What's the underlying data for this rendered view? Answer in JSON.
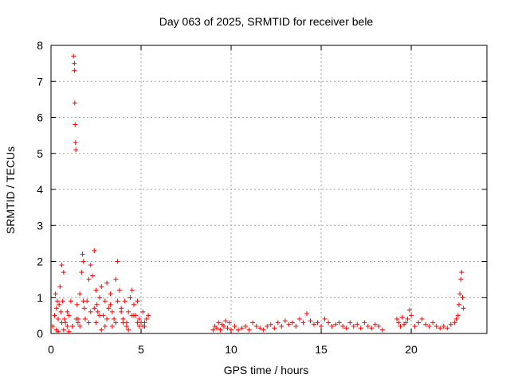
{
  "chart_data": {
    "type": "scatter",
    "title": "Day 063 of 2025, SRMTID for receiver bele",
    "xlabel": "GPS time / hours",
    "ylabel": "SRMTID / TECUs",
    "xlim": [
      0,
      24.2
    ],
    "ylim": [
      0,
      8
    ],
    "xticks": [
      0,
      5,
      10,
      15,
      20
    ],
    "xtick_labels": [
      "0",
      "5",
      "10",
      "15",
      "20"
    ],
    "yticks": [
      0,
      1,
      2,
      3,
      4,
      5,
      6,
      7,
      8
    ],
    "ytick_labels": [
      "0",
      "1",
      "2",
      "3",
      "4",
      "5",
      "6",
      "7",
      "8"
    ],
    "grid": true,
    "marker": "+",
    "color": "#ff0000",
    "series": [
      {
        "name": "SRMTID",
        "x": [
          0.1,
          0.2,
          0.25,
          0.3,
          0.35,
          0.4,
          0.45,
          0.5,
          0.55,
          0.6,
          0.65,
          0.7,
          0.75,
          0.8,
          0.9,
          1.0,
          1.1,
          1.2,
          1.25,
          1.3,
          1.3,
          1.32,
          1.34,
          1.36,
          1.38,
          1.4,
          1.45,
          1.5,
          1.6,
          1.7,
          1.75,
          1.8,
          1.85,
          1.9,
          2.0,
          2.1,
          2.2,
          2.3,
          2.4,
          2.5,
          2.55,
          2.6,
          2.7,
          2.8,
          2.9,
          3.0,
          3.1,
          3.2,
          3.3,
          3.4,
          3.5,
          3.6,
          3.7,
          3.8,
          3.9,
          4.0,
          4.1,
          4.2,
          4.3,
          4.4,
          4.5,
          4.6,
          4.7,
          4.8,
          4.9,
          5.0,
          5.1,
          5.2,
          5.3,
          5.4,
          0.3,
          0.6,
          0.9,
          1.2,
          1.5,
          1.8,
          2.1,
          2.4,
          2.7,
          3.0,
          3.3,
          3.6,
          3.9,
          4.2,
          4.5,
          4.8,
          5.1,
          0.4,
          0.7,
          1.0,
          1.6,
          2.2,
          2.5,
          2.8,
          3.1,
          3.4,
          3.7,
          4.0,
          4.3,
          4.6,
          4.9,
          5.2,
          9.0,
          9.1,
          9.2,
          9.3,
          9.4,
          9.5,
          9.6,
          9.7,
          9.8,
          9.9,
          10.0,
          10.2,
          10.4,
          10.6,
          10.8,
          11.0,
          11.2,
          11.4,
          11.6,
          11.8,
          12.0,
          12.2,
          12.4,
          12.6,
          12.8,
          13.0,
          13.2,
          13.4,
          13.6,
          13.8,
          14.0,
          14.2,
          14.4,
          14.6,
          14.8,
          15.0,
          15.2,
          15.4,
          15.6,
          15.8,
          16.0,
          16.2,
          16.4,
          16.6,
          16.8,
          17.0,
          17.2,
          17.4,
          17.6,
          17.8,
          18.0,
          18.2,
          18.4,
          19.2,
          19.3,
          19.4,
          19.5,
          19.6,
          19.7,
          19.8,
          19.9,
          20.0,
          20.2,
          20.4,
          20.6,
          20.8,
          21.0,
          21.2,
          21.4,
          21.6,
          21.8,
          22.0,
          22.2,
          22.4,
          22.5,
          22.6,
          22.65,
          22.7,
          22.75,
          22.8,
          22.85,
          22.9
        ],
        "y": [
          0.2,
          0.5,
          1.1,
          0.7,
          0.9,
          0.4,
          0.8,
          1.3,
          0.6,
          1.9,
          0.9,
          1.7,
          0.4,
          0.3,
          0.2,
          0.5,
          0.9,
          0.2,
          7.7,
          7.5,
          7.3,
          6.4,
          5.8,
          5.3,
          5.1,
          0.4,
          0.8,
          0.3,
          1.1,
          1.7,
          2.2,
          2.0,
          0.7,
          0.4,
          0.9,
          1.5,
          1.9,
          1.6,
          2.3,
          1.2,
          0.8,
          0.6,
          1.0,
          1.3,
          0.5,
          0.9,
          1.4,
          0.7,
          1.1,
          0.6,
          0.4,
          1.5,
          2.0,
          1.2,
          0.7,
          0.4,
          0.9,
          0.3,
          0.6,
          1.0,
          1.2,
          0.8,
          0.5,
          0.9,
          0.4,
          0.3,
          0.6,
          0.2,
          0.4,
          0.5,
          0.1,
          0.3,
          0.6,
          0.2,
          0.4,
          0.9,
          0.3,
          0.7,
          0.5,
          0.2,
          0.8,
          0.3,
          0.6,
          0.2,
          0.5,
          0.3,
          0.2,
          0.05,
          0.1,
          0.05,
          0.2,
          0.6,
          0.3,
          0.1,
          0.4,
          0.2,
          0.9,
          0.3,
          0.1,
          0.5,
          0.2,
          0.3,
          0.1,
          0.2,
          0.15,
          0.3,
          0.1,
          0.25,
          0.2,
          0.35,
          0.15,
          0.3,
          0.1,
          0.2,
          0.1,
          0.15,
          0.2,
          0.1,
          0.3,
          0.2,
          0.15,
          0.1,
          0.2,
          0.25,
          0.15,
          0.3,
          0.2,
          0.35,
          0.25,
          0.3,
          0.2,
          0.4,
          0.3,
          0.55,
          0.35,
          0.25,
          0.3,
          0.2,
          0.4,
          0.3,
          0.2,
          0.25,
          0.3,
          0.2,
          0.15,
          0.3,
          0.2,
          0.25,
          0.15,
          0.3,
          0.2,
          0.15,
          0.25,
          0.2,
          0.1,
          0.4,
          0.3,
          0.2,
          0.45,
          0.25,
          0.3,
          0.4,
          0.65,
          0.5,
          0.2,
          0.3,
          0.4,
          0.25,
          0.2,
          0.3,
          0.2,
          0.15,
          0.2,
          0.15,
          0.25,
          0.3,
          0.4,
          0.5,
          0.8,
          1.1,
          1.5,
          1.7,
          1.0,
          0.7
        ]
      }
    ]
  }
}
